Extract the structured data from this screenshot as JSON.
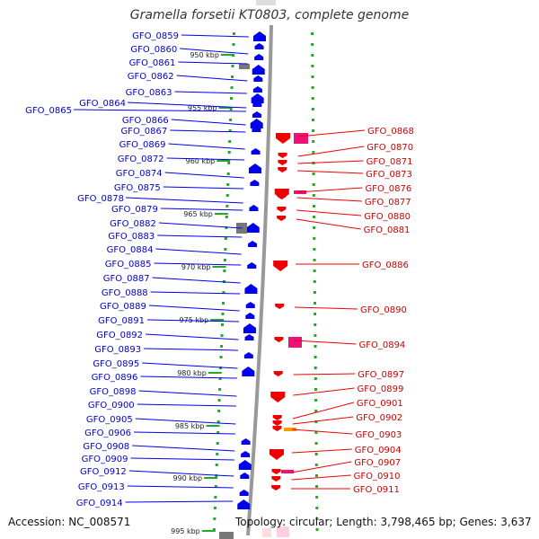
{
  "title": "Gramella forsetii KT0803, complete genome",
  "footer": {
    "accession": "Accession: NC_008571",
    "topology": "Topology: circular; Length: 3,798,465 bp; Genes: 3,637"
  },
  "colors": {
    "forward_gene": "#0000ee",
    "reverse_gene": "#ee0000",
    "forward_label": "#0000cc",
    "reverse_label": "#cc0000",
    "pseudo_gene": "#777777",
    "rna_gene": "#ee1177",
    "misc_gene": "#ff9900",
    "tick_mark": "#22aa22",
    "backbone": "#999999"
  },
  "scale_ticks": [
    "950 kbp",
    "955 kbp",
    "960 kbp",
    "965 kbp",
    "970 kbp",
    "975 kbp",
    "980 kbp",
    "985 kbp",
    "990 kbp",
    "995 kbp"
  ],
  "forward_genes": [
    "GFO_0859",
    "GFO_0860",
    "GFO_0861",
    "GFO_0862",
    "GFO_0863",
    "GFO_0864",
    "GFO_0865",
    "GFO_0866",
    "GFO_0867",
    "GFO_0869",
    "GFO_0872",
    "GFO_0874",
    "GFO_0875",
    "GFO_0878",
    "GFO_0879",
    "GFO_0882",
    "GFO_0883",
    "GFO_0884",
    "GFO_0885",
    "GFO_0887",
    "GFO_0888",
    "GFO_0889",
    "GFO_0891",
    "GFO_0892",
    "GFO_0893",
    "GFO_0895",
    "GFO_0896",
    "GFO_0898",
    "GFO_0900",
    "GFO_0905",
    "GFO_0906",
    "GFO_0908",
    "GFO_0909",
    "GFO_0912",
    "GFO_0913",
    "GFO_0914"
  ],
  "reverse_genes": [
    "GFO_0868",
    "GFO_0870",
    "GFO_0871",
    "GFO_0873",
    "GFO_0876",
    "GFO_0877",
    "GFO_0880",
    "GFO_0881",
    "GFO_0886",
    "GFO_0890",
    "GFO_0894",
    "GFO_0897",
    "GFO_0899",
    "GFO_0901",
    "GFO_0902",
    "GFO_0903",
    "GFO_0904",
    "GFO_0907",
    "GFO_0910",
    "GFO_0911"
  ]
}
